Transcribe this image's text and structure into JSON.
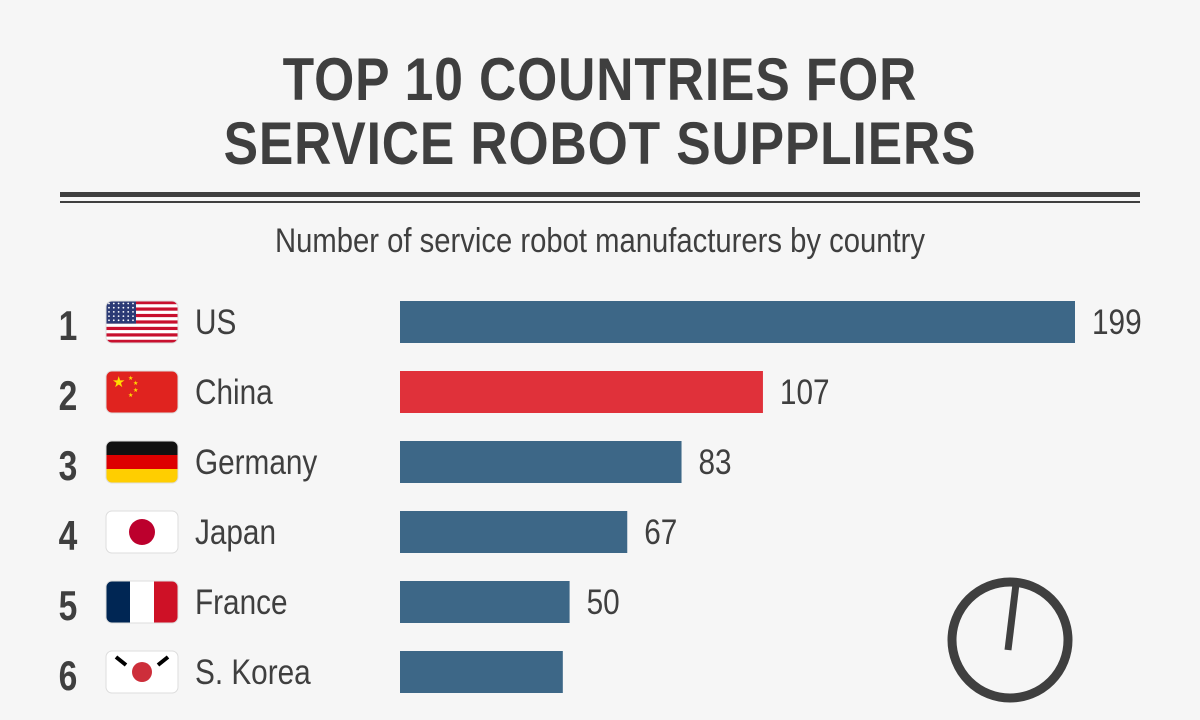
{
  "chart_data": {
    "type": "bar",
    "orientation": "horizontal",
    "title": "TOP 10 COUNTRIES FOR SERVICE ROBOT SUPPLIERS",
    "title_lines": [
      "TOP 10 COUNTRIES FOR",
      "SERVICE ROBOT SUPPLIERS"
    ],
    "subtitle": "Number of service robot manufacturers by country",
    "categories": [
      "US",
      "China",
      "Germany",
      "Japan",
      "France",
      "S. Korea"
    ],
    "ranks": [
      "1",
      "2",
      "3",
      "4",
      "5",
      "6"
    ],
    "values": [
      199,
      107,
      83,
      67,
      50,
      48
    ],
    "value_labels": [
      "199",
      "107",
      "83",
      "67",
      "50",
      ""
    ],
    "flags": [
      "us-flag",
      "china-flag",
      "germany-flag",
      "japan-flag",
      "france-flag",
      "south-korea-flag"
    ],
    "bar_colors": [
      "#3d6787",
      "#e0313a",
      "#3d6787",
      "#3d6787",
      "#3d6787",
      "#3d6787"
    ],
    "grid": false,
    "legend": "none"
  }
}
